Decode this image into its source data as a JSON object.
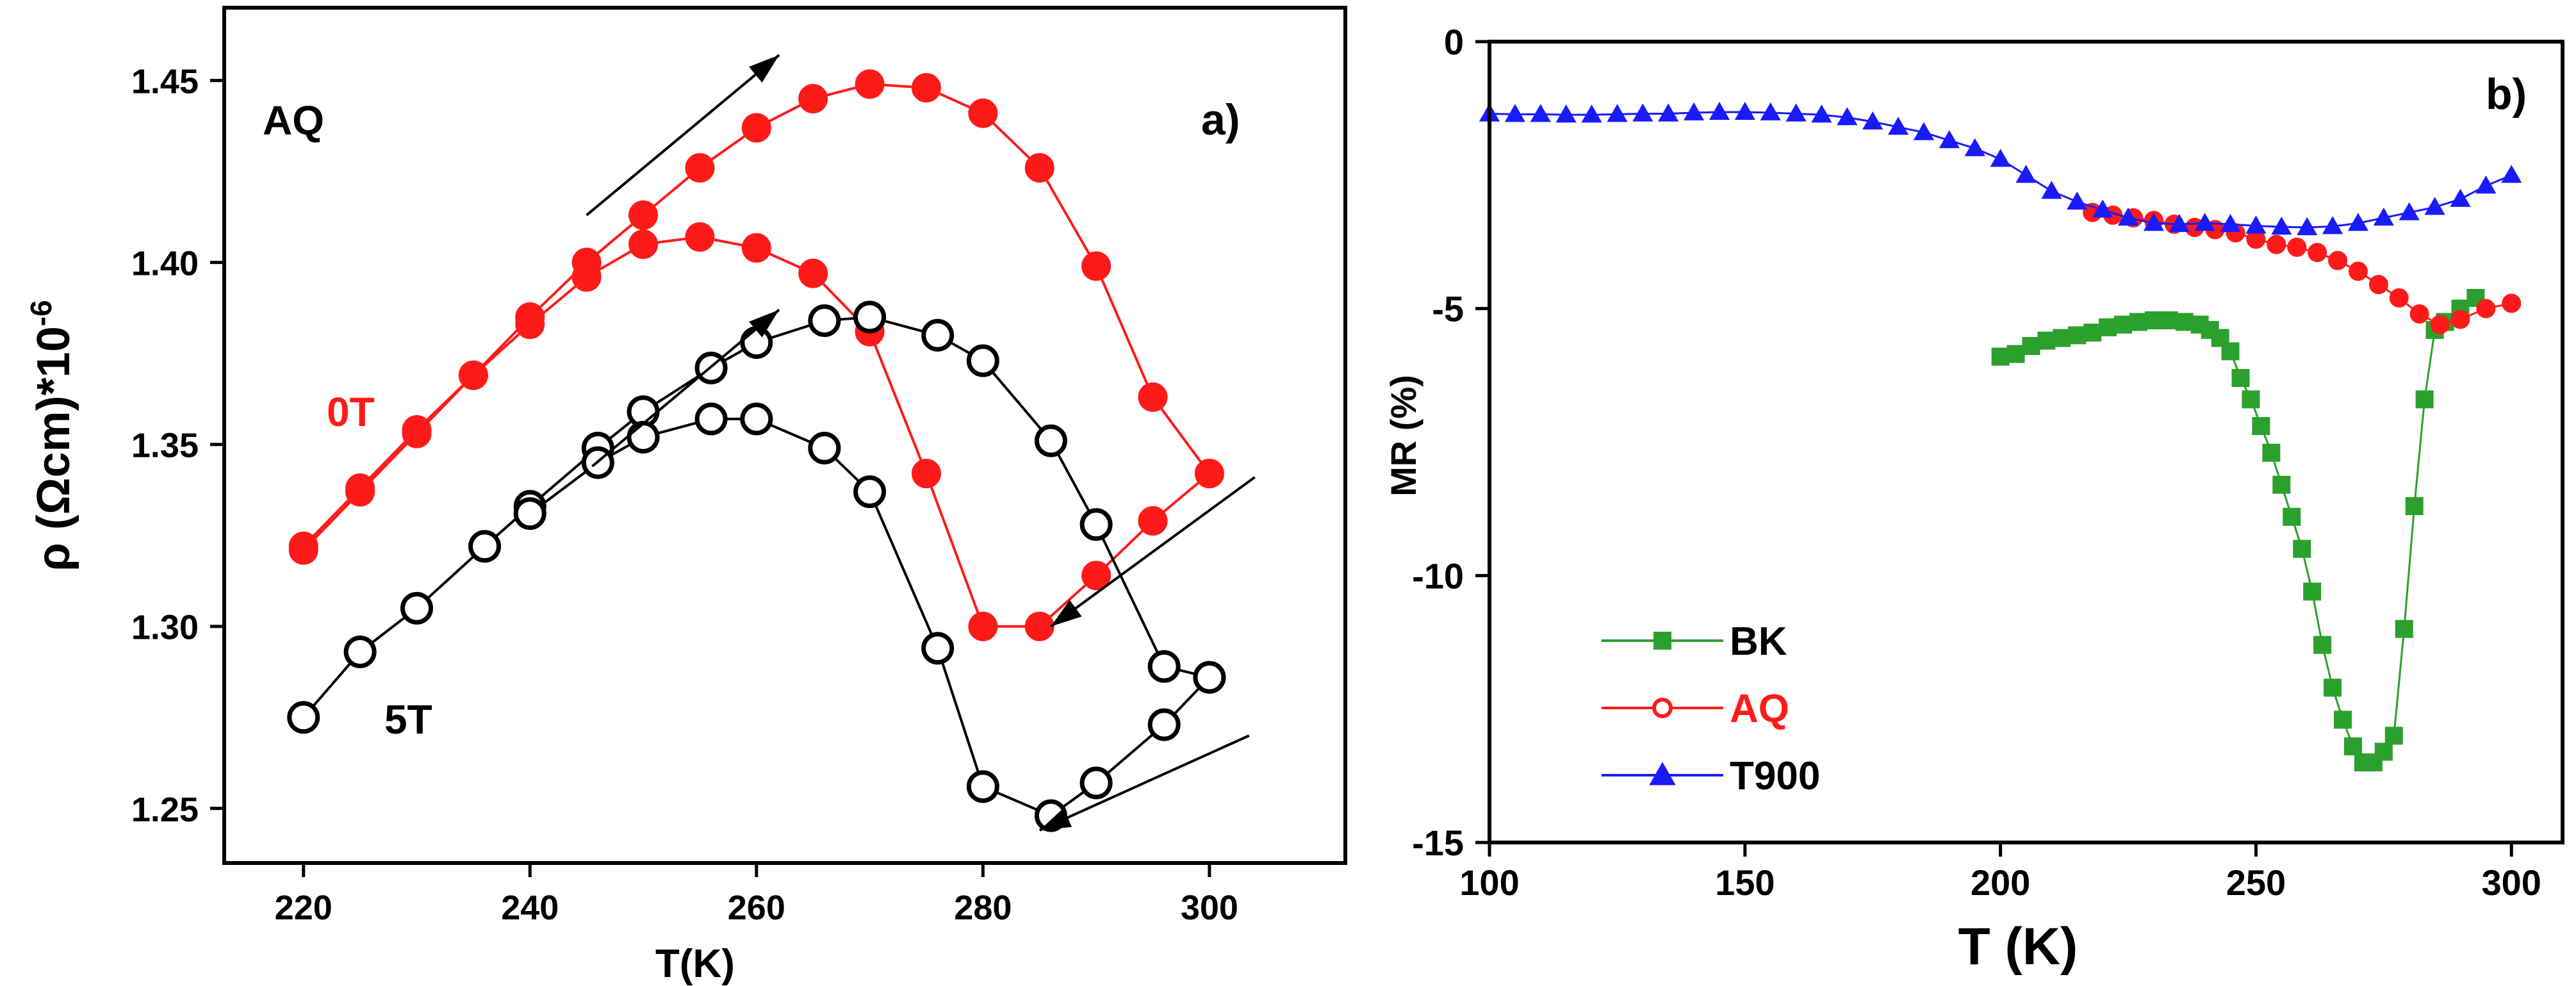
{
  "chart_data": [
    {
      "type": "line",
      "panel_label": "a)",
      "sample_label": "AQ",
      "xlabel": "T(K)",
      "ylabel_main": "ρ (Ωcm)*10",
      "ylabel_exp": "-6",
      "xlim": [
        213,
        312
      ],
      "ylim": [
        1.235,
        1.47
      ],
      "xticks": [
        220,
        240,
        260,
        280,
        300
      ],
      "yticks": [
        1.25,
        1.3,
        1.35,
        1.4,
        1.45
      ],
      "xtick_labels": [
        "220",
        "240",
        "260",
        "280",
        "300"
      ],
      "ytick_labels": [
        "1.25",
        "1.30",
        "1.35",
        "1.40",
        "1.45"
      ],
      "annotations": [
        "0T",
        "5T"
      ],
      "series": [
        {
          "name": "0T heating",
          "color": "#ff1a1a",
          "marker": "filled-circle",
          "x": [
            220,
            225,
            230,
            235,
            240,
            245,
            250,
            255,
            260,
            265,
            270,
            275,
            280,
            285,
            290,
            295,
            300
          ],
          "y": [
            1.322,
            1.338,
            1.354,
            1.369,
            1.385,
            1.4,
            1.413,
            1.426,
            1.437,
            1.445,
            1.449,
            1.448,
            1.441,
            1.426,
            1.399,
            1.363,
            1.342
          ]
        },
        {
          "name": "0T cooling",
          "color": "#ff1a1a",
          "marker": "filled-circle",
          "x": [
            300,
            295,
            290,
            285,
            280,
            275,
            270,
            265,
            260,
            255,
            250,
            245,
            240,
            235,
            230,
            225,
            220
          ],
          "y": [
            1.342,
            1.329,
            1.314,
            1.3,
            1.3,
            1.342,
            1.381,
            1.397,
            1.404,
            1.407,
            1.405,
            1.396,
            1.383,
            1.369,
            1.353,
            1.337,
            1.321
          ]
        },
        {
          "name": "5T heating",
          "color": "#000000",
          "marker": "open-circle",
          "x": [
            220,
            225,
            230,
            236,
            240,
            246,
            250,
            256,
            260,
            266,
            270,
            276,
            280,
            286,
            290,
            296,
            300
          ],
          "y": [
            1.275,
            1.293,
            1.305,
            1.322,
            1.333,
            1.349,
            1.359,
            1.371,
            1.378,
            1.384,
            1.385,
            1.38,
            1.373,
            1.351,
            1.328,
            1.289,
            1.286
          ]
        },
        {
          "name": "5T cooling",
          "color": "#000000",
          "marker": "open-circle",
          "x": [
            300,
            296,
            290,
            286,
            280,
            276,
            270,
            266,
            260,
            256,
            250,
            246,
            240
          ],
          "y": [
            1.286,
            1.273,
            1.257,
            1.248,
            1.256,
            1.294,
            1.337,
            1.349,
            1.357,
            1.357,
            1.352,
            1.345,
            1.331
          ]
        }
      ]
    },
    {
      "type": "line",
      "panel_label": "b)",
      "xlabel": "T (K)",
      "ylabel": "MR (%)",
      "xlim": [
        100,
        310
      ],
      "ylim": [
        -15,
        0
      ],
      "xticks": [
        100,
        150,
        200,
        250,
        300
      ],
      "yticks": [
        0,
        -5,
        -10,
        -15
      ],
      "xtick_labels": [
        "100",
        "150",
        "200",
        "250",
        "300"
      ],
      "ytick_labels": [
        "0",
        "-5",
        "-10",
        "-15"
      ],
      "legend_position": "bottom-left",
      "series": [
        {
          "name": "BK",
          "color": "#2ca02c",
          "marker": "filled-square",
          "x": [
            200,
            203,
            206,
            209,
            212,
            215,
            218,
            221,
            224,
            227,
            230,
            233,
            236,
            239,
            241,
            243,
            245,
            247,
            249,
            251,
            253,
            255,
            257,
            259,
            261,
            263,
            265,
            267,
            269,
            271,
            273,
            275,
            277,
            279,
            281,
            283,
            285,
            287,
            290,
            293
          ],
          "y": [
            -5.9,
            -5.85,
            -5.7,
            -5.6,
            -5.55,
            -5.5,
            -5.45,
            -5.35,
            -5.3,
            -5.25,
            -5.22,
            -5.22,
            -5.25,
            -5.3,
            -5.4,
            -5.55,
            -5.8,
            -6.3,
            -6.7,
            -7.2,
            -7.7,
            -8.3,
            -8.9,
            -9.5,
            -10.3,
            -11.3,
            -12.1,
            -12.7,
            -13.2,
            -13.5,
            -13.5,
            -13.3,
            -13.0,
            -11.0,
            -8.7,
            -6.7,
            -5.4,
            -5.25,
            -5.0,
            -4.8
          ]
        },
        {
          "name": "AQ",
          "color": "#ff1a1a",
          "marker": "filled-circle",
          "x": [
            218,
            222,
            226,
            230,
            234,
            238,
            242,
            246,
            250,
            254,
            258,
            262,
            266,
            270,
            274,
            278,
            282,
            286,
            290,
            295,
            300
          ],
          "y": [
            -3.2,
            -3.25,
            -3.3,
            -3.35,
            -3.42,
            -3.48,
            -3.52,
            -3.58,
            -3.7,
            -3.8,
            -3.85,
            -3.95,
            -4.1,
            -4.3,
            -4.55,
            -4.8,
            -5.1,
            -5.3,
            -5.2,
            -5.0,
            -4.9
          ]
        },
        {
          "name": "T900",
          "color": "#1a1aff",
          "marker": "filled-triangle",
          "x": [
            100,
            105,
            110,
            115,
            120,
            125,
            130,
            135,
            140,
            145,
            150,
            155,
            160,
            165,
            170,
            175,
            180,
            185,
            190,
            195,
            200,
            205,
            210,
            215,
            220,
            225,
            230,
            235,
            240,
            245,
            250,
            255,
            260,
            265,
            270,
            275,
            280,
            285,
            290,
            295,
            300
          ],
          "y": [
            -1.35,
            -1.36,
            -1.36,
            -1.37,
            -1.37,
            -1.36,
            -1.35,
            -1.35,
            -1.33,
            -1.32,
            -1.32,
            -1.33,
            -1.35,
            -1.37,
            -1.42,
            -1.5,
            -1.6,
            -1.7,
            -1.85,
            -2.0,
            -2.2,
            -2.5,
            -2.8,
            -3.0,
            -3.15,
            -3.3,
            -3.4,
            -3.42,
            -3.4,
            -3.42,
            -3.45,
            -3.47,
            -3.48,
            -3.46,
            -3.4,
            -3.3,
            -3.2,
            -3.1,
            -2.95,
            -2.7,
            -2.5
          ]
        }
      ]
    }
  ]
}
